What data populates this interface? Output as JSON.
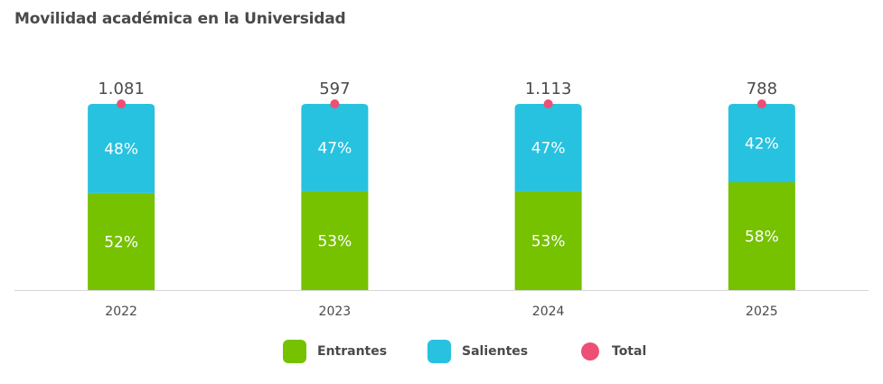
{
  "title": "Movilidad académica en la Universidad",
  "colors": {
    "entrantes": "#76c100",
    "salientes": "#27c2df",
    "total": "#ee4f74",
    "axis": "#d6d6d6",
    "text": "#4a4a4a"
  },
  "chart_data": {
    "type": "bar",
    "stacked": true,
    "categories": [
      "2022",
      "2023",
      "2024",
      "2025"
    ],
    "series": [
      {
        "name": "Entrantes",
        "values": [
          52,
          53,
          53,
          58
        ],
        "labels": [
          "52%",
          "53%",
          "53%",
          "58%"
        ]
      },
      {
        "name": "Salientes",
        "values": [
          48,
          47,
          47,
          42
        ],
        "labels": [
          "48%",
          "47%",
          "47%",
          "42%"
        ]
      }
    ],
    "total": {
      "name": "Total",
      "values": [
        1081,
        597,
        1113,
        788
      ],
      "labels": [
        "1.081",
        "597",
        "1.113",
        "788"
      ]
    },
    "ylim": [
      0,
      100
    ],
    "grid": false,
    "legend": "bottom-center"
  }
}
